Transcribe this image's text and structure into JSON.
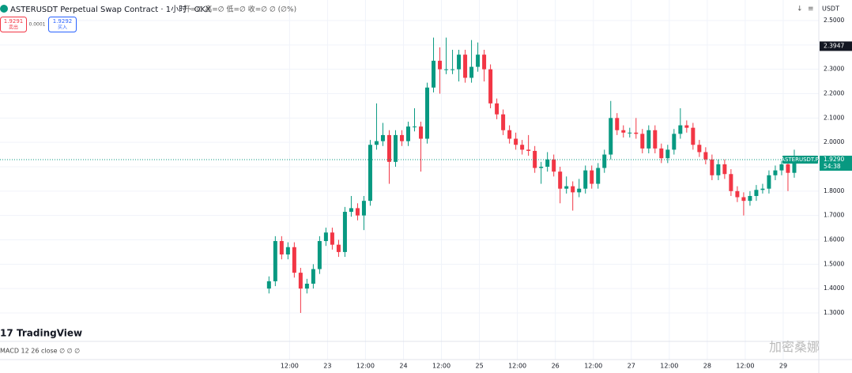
{
  "chart_data": {
    "type": "candlestick",
    "title": "ASTERUSDT Perpetual Swap Contract · 1小时 · OKX",
    "ohlc_legend": "开=∅ 高=∅ 低=∅ 收=∅ ∅ (∅%)",
    "currency": "USDT",
    "sell_price": 1.9291,
    "sell_label": "卖出",
    "spread": 0.0001,
    "buy_price": 1.9292,
    "buy_label": "买入",
    "brand": "TradingView",
    "indicator": "MACD 12 26 close ∅ ∅ ∅",
    "watermark": "加密桑娜",
    "symbol_label": "ASTERUSDT.P",
    "last_price": {
      "value": 1.929,
      "label": "1.9290"
    },
    "countdown": "54:38",
    "high_marker": 2.3947,
    "up_color": "#089981",
    "down_color": "#f23645",
    "xlim": [
      -79.5,
      179.25
    ],
    "ylim": [
      1.1897,
      2.5843
    ],
    "xticks": [
      {
        "value": 12,
        "label": "12:00"
      },
      {
        "value": 24,
        "label": "23"
      },
      {
        "value": 36,
        "label": "12:00"
      },
      {
        "value": 48,
        "label": "24"
      },
      {
        "value": 60,
        "label": "12:00"
      },
      {
        "value": 72,
        "label": "25"
      },
      {
        "value": 84,
        "label": "12:00"
      },
      {
        "value": 96,
        "label": "26"
      },
      {
        "value": 108,
        "label": "12:00"
      },
      {
        "value": 120,
        "label": "27"
      },
      {
        "value": 132,
        "label": "12:00"
      },
      {
        "value": 144,
        "label": "28"
      },
      {
        "value": 156,
        "label": "12:00"
      },
      {
        "value": 168,
        "label": "29"
      }
    ],
    "yticks": [
      {
        "value": 2.5,
        "label": "2.5000"
      },
      {
        "value": 2.4,
        "label": "2.4000"
      },
      {
        "value": 2.3,
        "label": "2.3000"
      },
      {
        "value": 2.2,
        "label": "2.2000"
      },
      {
        "value": 2.1,
        "label": "2.1000"
      },
      {
        "value": 2,
        "label": "2.0000"
      },
      {
        "value": 1.9,
        "label": "1.9000"
      },
      {
        "value": 1.8,
        "label": "1.8000"
      },
      {
        "value": 1.7,
        "label": "1.7000"
      },
      {
        "value": 1.6,
        "label": "1.6000"
      },
      {
        "value": 1.5,
        "label": "1.5000"
      },
      {
        "value": 1.4,
        "label": "1.4000"
      },
      {
        "value": 1.3,
        "label": "1.3000"
      }
    ],
    "grid": true,
    "x": [
      5.5,
      7.5,
      9.5,
      11.5,
      13.5,
      15.5,
      17.5,
      19.5,
      21.5,
      23.5,
      25.5,
      27.5,
      29.5,
      31.5,
      33.5,
      35.5,
      37.5,
      39.5,
      41.5,
      43.5,
      45.5,
      47.5,
      49.5,
      51.5,
      53.5,
      55.5,
      57.5,
      59.5,
      61.5,
      63.5,
      65.5,
      67.5,
      69.5,
      71.5,
      73.5,
      75.5,
      77.5,
      79.5,
      81.5,
      83.5,
      85.5,
      87.5,
      89.5,
      91.5,
      93.5,
      95.5,
      97.5,
      99.5,
      101.5,
      103.5,
      105.5,
      107.5,
      109.5,
      111.5,
      113.5,
      115.5,
      117.5,
      119.5,
      121.5,
      123.5,
      125.5,
      127.5,
      129.5,
      131.5,
      133.5,
      135.5,
      137.5,
      139.5,
      141.5,
      143.5,
      145.5,
      147.5,
      149.5,
      151.5,
      153.5,
      155.5,
      157.5,
      159.5,
      161.5,
      163.5,
      165.5,
      167.5,
      169.5,
      171.5
    ],
    "open": [
      1.4,
      1.43,
      1.595,
      1.54,
      1.57,
      1.465,
      1.4,
      1.42,
      1.48,
      1.595,
      1.63,
      1.58,
      1.55,
      1.715,
      1.73,
      1.7,
      1.76,
      1.99,
      2.005,
      2.03,
      1.92,
      2.03,
      2.005,
      2.065,
      2.065,
      2.015,
      2.225,
      2.335,
      2.3,
      2.3,
      2.3,
      2.36,
      2.265,
      2.31,
      2.36,
      2.3,
      2.16,
      2.115,
      2.05,
      2.015,
      1.99,
      1.97,
      1.965,
      1.895,
      1.9,
      1.93,
      1.88,
      1.81,
      1.82,
      1.795,
      1.81,
      1.885,
      1.83,
      1.895,
      1.95,
      2.1,
      2.05,
      2.04,
      2.04,
      2.035,
      1.975,
      2.05,
      1.975,
      1.935,
      1.97,
      2.035,
      2.07,
      2.06,
      1.99,
      1.96,
      1.93,
      1.865,
      1.91,
      1.87,
      1.8,
      1.775,
      1.76,
      1.78,
      1.805,
      1.81,
      1.865,
      1.885,
      1.91,
      1.875
    ],
    "high": [
      1.45,
      1.615,
      1.615,
      1.59,
      1.59,
      1.485,
      1.44,
      1.5,
      1.615,
      1.65,
      1.65,
      1.6,
      1.735,
      1.78,
      1.75,
      1.78,
      2.01,
      2.16,
      2.08,
      2.05,
      2.05,
      2.05,
      2.085,
      2.14,
      2.085,
      2.245,
      2.43,
      2.39,
      2.43,
      2.38,
      2.38,
      2.38,
      2.42,
      2.41,
      2.38,
      2.32,
      2.18,
      2.135,
      2.07,
      2.04,
      2.01,
      2.03,
      1.985,
      1.92,
      1.96,
      1.95,
      1.9,
      1.86,
      1.84,
      1.85,
      1.905,
      1.905,
      1.915,
      1.97,
      2.17,
      2.12,
      2.07,
      2.06,
      2.1,
      2.055,
      2.07,
      2.07,
      1.995,
      1.99,
      2.055,
      2.14,
      2.09,
      2.08,
      2.01,
      1.98,
      1.95,
      1.93,
      1.93,
      1.89,
      1.82,
      1.795,
      1.8,
      1.825,
      1.83,
      1.885,
      1.905,
      1.93,
      1.93,
      1.97
    ],
    "low": [
      1.38,
      1.41,
      1.52,
      1.52,
      1.445,
      1.3,
      1.38,
      1.4,
      1.46,
      1.575,
      1.56,
      1.53,
      1.53,
      1.695,
      1.68,
      1.64,
      1.74,
      1.97,
      1.985,
      1.83,
      1.9,
      1.985,
      1.985,
      2.045,
      1.88,
      1.995,
      2.205,
      2.2,
      2.28,
      2.28,
      2.25,
      2.245,
      2.245,
      2.29,
      2.25,
      2.14,
      2.095,
      2.03,
      1.995,
      1.97,
      1.95,
      1.945,
      1.875,
      1.83,
      1.88,
      1.86,
      1.75,
      1.79,
      1.72,
      1.775,
      1.79,
      1.81,
      1.81,
      1.875,
      1.93,
      2.03,
      2.02,
      2.02,
      2.015,
      1.955,
      1.955,
      1.955,
      1.915,
      1.915,
      1.95,
      2.015,
      2.04,
      1.97,
      1.94,
      1.91,
      1.845,
      1.845,
      1.85,
      1.78,
      1.755,
      1.7,
      1.74,
      1.76,
      1.79,
      1.79,
      1.845,
      1.865,
      1.8,
      1.855
    ],
    "close": [
      1.43,
      1.595,
      1.54,
      1.57,
      1.465,
      1.4,
      1.42,
      1.48,
      1.595,
      1.63,
      1.58,
      1.55,
      1.715,
      1.73,
      1.7,
      1.76,
      1.99,
      2.005,
      2.03,
      1.92,
      2.03,
      2.005,
      2.065,
      2.065,
      2.015,
      2.225,
      2.335,
      2.3,
      2.3,
      2.3,
      2.36,
      2.265,
      2.31,
      2.36,
      2.3,
      2.16,
      2.115,
      2.05,
      2.015,
      1.99,
      1.97,
      1.965,
      1.895,
      1.9,
      1.93,
      1.88,
      1.81,
      1.82,
      1.795,
      1.81,
      1.885,
      1.83,
      1.895,
      1.95,
      2.1,
      2.05,
      2.04,
      2.04,
      2.035,
      1.975,
      2.05,
      1.975,
      1.935,
      1.97,
      2.035,
      2.07,
      2.06,
      1.99,
      1.96,
      1.93,
      1.865,
      1.91,
      1.87,
      1.8,
      1.775,
      1.76,
      1.78,
      1.805,
      1.81,
      1.865,
      1.885,
      1.91,
      1.875,
      1.929
    ]
  }
}
